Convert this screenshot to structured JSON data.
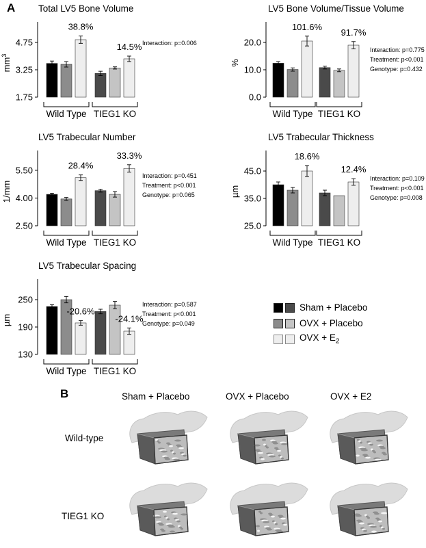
{
  "panel_a_label": "A",
  "panel_b_label": "B",
  "chart_data": [
    {
      "type": "bar",
      "title": "Total LV5 Bone Volume",
      "ylabel": "mm",
      "ylabel_sup": "3",
      "yticks": [
        "1.75",
        "3.25",
        "4.75"
      ],
      "ylim": [
        1.75,
        5.5
      ],
      "groups": [
        "Wild Type",
        "TIEG1 KO"
      ],
      "series": [
        {
          "name": "Sham + Placebo",
          "values": [
            3.6,
            3.05
          ],
          "errors": [
            0.13,
            0.12
          ]
        },
        {
          "name": "OVX + Placebo",
          "values": [
            3.55,
            3.35
          ],
          "errors": [
            0.15,
            0.06
          ]
        },
        {
          "name": "OVX + E2",
          "values": [
            4.9,
            3.85
          ],
          "errors": [
            0.2,
            0.15
          ]
        }
      ],
      "annotations": [
        "38.8%",
        "14.5%"
      ],
      "stats": [
        "Interaction: p=0.006"
      ]
    },
    {
      "type": "bar",
      "title": "LV5 Bone Volume/Tissue Volume",
      "ylabel": "%",
      "ylabel_sup": "",
      "yticks": [
        "0.0",
        "10.0",
        "20.0"
      ],
      "ylim": [
        0,
        25
      ],
      "groups": [
        "Wild Type",
        "TIEG1 KO"
      ],
      "series": [
        {
          "name": "Sham + Placebo",
          "values": [
            12.4,
            10.8
          ],
          "errors": [
            0.6,
            0.5
          ]
        },
        {
          "name": "OVX + Placebo",
          "values": [
            10.1,
            9.8
          ],
          "errors": [
            0.6,
            0.5
          ]
        },
        {
          "name": "OVX + E2",
          "values": [
            20.5,
            19.0
          ],
          "errors": [
            1.8,
            1.3
          ]
        }
      ],
      "annotations": [
        "101.6%",
        "91.7%"
      ],
      "stats": [
        "Interaction: p=0.775",
        "Treatment: p<0.001",
        "Genotype: p=0.432"
      ]
    },
    {
      "type": "bar",
      "title": "LV5 Trabecular Number",
      "ylabel": "1/mm",
      "ylabel_sup": "",
      "yticks": [
        "2.50",
        "4.00",
        "5.50"
      ],
      "ylim": [
        2.5,
        6.2
      ],
      "groups": [
        "Wild Type",
        "TIEG1 KO"
      ],
      "series": [
        {
          "name": "Sham + Placebo",
          "values": [
            4.2,
            4.4
          ],
          "errors": [
            0.06,
            0.08
          ]
        },
        {
          "name": "OVX + Placebo",
          "values": [
            3.95,
            4.2
          ],
          "errors": [
            0.08,
            0.15
          ]
        },
        {
          "name": "OVX + E2",
          "values": [
            5.1,
            5.6
          ],
          "errors": [
            0.15,
            0.2
          ]
        }
      ],
      "annotations": [
        "28.4%",
        "33.3%"
      ],
      "stats": [
        "Interaction: p=0.451",
        "Treatment: p<0.001",
        "Genotype: p=0.065"
      ]
    },
    {
      "type": "bar",
      "title": "LV5 Trabecular Thickness",
      "ylabel": "µm",
      "ylabel_sup": "",
      "yticks": [
        "25.0",
        "35.0",
        "45.0"
      ],
      "ylim": [
        25,
        50
      ],
      "groups": [
        "Wild Type",
        "TIEG1 KO"
      ],
      "series": [
        {
          "name": "Sham + Placebo",
          "values": [
            40.0,
            37.0
          ],
          "errors": [
            1.0,
            1.0
          ]
        },
        {
          "name": "OVX + Placebo",
          "values": [
            38.0,
            36.0
          ],
          "errors": [
            1.0,
            0.0
          ]
        },
        {
          "name": "OVX + E2",
          "values": [
            45.0,
            41.0
          ],
          "errors": [
            2.0,
            1.2
          ]
        }
      ],
      "annotations": [
        "18.6%",
        "12.4%"
      ],
      "stats": [
        "Interaction: p=0.109",
        "Treatment: p<0.001",
        "Genotype: p=0.008"
      ]
    },
    {
      "type": "bar",
      "title": "LV5 Trabecular Spacing",
      "ylabel": "µm",
      "ylabel_sup": "",
      "yticks": [
        "130",
        "190",
        "250"
      ],
      "ylim": [
        130,
        280
      ],
      "groups": [
        "Wild Type",
        "TIEG1 KO"
      ],
      "series": [
        {
          "name": "Sham + Placebo",
          "values": [
            235,
            224
          ],
          "errors": [
            4,
            5
          ]
        },
        {
          "name": "OVX + Placebo",
          "values": [
            250,
            238
          ],
          "errors": [
            7,
            8
          ]
        },
        {
          "name": "OVX + E2",
          "values": [
            199,
            181
          ],
          "errors": [
            5,
            7
          ]
        }
      ],
      "annotations": [
        "-20.6%",
        "-24.1%"
      ],
      "stats": [
        "Interaction: p=0.587",
        "Treatment: p<0.001",
        "Genotype: p=0.049"
      ]
    }
  ],
  "legend": {
    "items": [
      {
        "label": "Sham + Placebo",
        "sub": "",
        "colors": [
          "#000000",
          "#4a4a4a"
        ]
      },
      {
        "label": "OVX + Placebo",
        "sub": "",
        "colors": [
          "#8c8c8c",
          "#c4c4c4"
        ]
      },
      {
        "label": "OVX + E",
        "sub": "2",
        "colors": [
          "#e8e8e8",
          "#e8e8e8"
        ]
      }
    ]
  },
  "panel_b": {
    "columns": [
      "Sham + Placebo",
      "OVX + Placebo",
      "OVX + E2"
    ],
    "rows": [
      "Wild-type",
      "TIEG1 KO"
    ]
  },
  "colors": {
    "wt": [
      "#000000",
      "#8c8c8c",
      "#eeeeee"
    ],
    "ko": [
      "#4a4a4a",
      "#c4c4c4",
      "#eeeeee"
    ]
  }
}
